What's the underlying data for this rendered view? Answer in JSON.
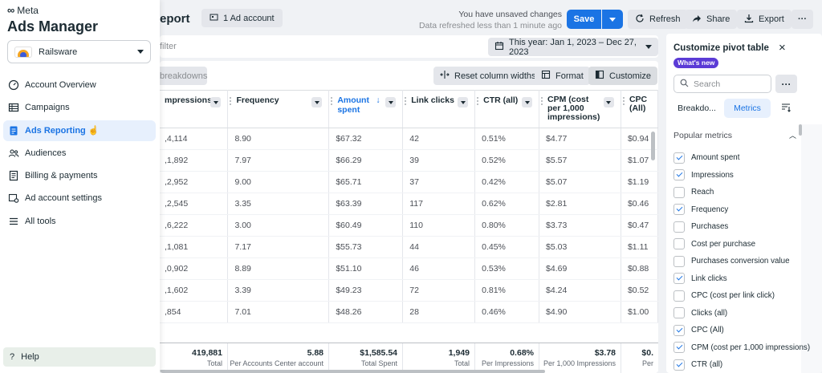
{
  "nav": {
    "brand": "Meta",
    "title": "Ads Manager",
    "account": "Railsware",
    "items": [
      {
        "label": "Account Overview",
        "icon": "gauge-icon",
        "active": false
      },
      {
        "label": "Campaigns",
        "icon": "table-icon",
        "active": false
      },
      {
        "label": "Ads Reporting",
        "icon": "report-icon",
        "active": true
      },
      {
        "label": "Audiences",
        "icon": "people-icon",
        "active": false
      },
      {
        "label": "Billing & payments",
        "icon": "receipt-icon",
        "active": false
      },
      {
        "label": "Ad account settings",
        "icon": "settings-icon",
        "active": false
      },
      {
        "label": "All tools",
        "icon": "menu-icon",
        "active": false
      }
    ],
    "help": "Help"
  },
  "header": {
    "title_partial": "eport",
    "ad_account": "1 Ad account",
    "unsaved": "You have unsaved changes",
    "refreshed": "Data refreshed less than 1 minute ago",
    "save": "Save",
    "refresh": "Refresh",
    "share": "Share",
    "export": "Export"
  },
  "filter": {
    "placeholder_partial": "filter",
    "date_range": "This year: Jan 1, 2023 – Dec 27, 2023"
  },
  "toolbar": {
    "breakdowns_partial": "breakdowns",
    "reset": "Reset column widths",
    "format": "Format",
    "customize": "Customize"
  },
  "table": {
    "columns": [
      {
        "label": "mpressions",
        "sorted": false
      },
      {
        "label": "Frequency",
        "sorted": false
      },
      {
        "label": "Amount spent",
        "sorted": true
      },
      {
        "label": "Link clicks",
        "sorted": false
      },
      {
        "label": "CTR (all)",
        "sorted": false
      },
      {
        "label": "CPM (cost per 1,000 impressions)",
        "sorted": false
      },
      {
        "label": "CPC (All)",
        "sorted": false
      }
    ],
    "rows": [
      [
        ",4,114",
        "8.90",
        "$67.32",
        "42",
        "0.51%",
        "$4.77",
        "$0.94"
      ],
      [
        ",1,892",
        "7.97",
        "$66.29",
        "39",
        "0.52%",
        "$5.57",
        "$1.07"
      ],
      [
        ",2,952",
        "9.00",
        "$65.71",
        "37",
        "0.42%",
        "$5.07",
        "$1.19"
      ],
      [
        ",2,545",
        "3.35",
        "$63.39",
        "117",
        "0.62%",
        "$2.81",
        "$0.46"
      ],
      [
        ",6,222",
        "3.00",
        "$60.49",
        "110",
        "0.80%",
        "$3.73",
        "$0.47"
      ],
      [
        ",1,081",
        "7.17",
        "$55.73",
        "44",
        "0.45%",
        "$5.03",
        "$1.11"
      ],
      [
        ",0,902",
        "8.89",
        "$51.10",
        "46",
        "0.53%",
        "$4.69",
        "$0.88"
      ],
      [
        ",1,602",
        "3.39",
        "$49.23",
        "72",
        "0.81%",
        "$4.24",
        "$0.52"
      ],
      [
        ",854",
        "7.01",
        "$48.26",
        "28",
        "0.46%",
        "$4.90",
        "$1.00"
      ]
    ],
    "totals": [
      {
        "value": "419,881",
        "label": "Total"
      },
      {
        "value": "5.88",
        "label": "Per Accounts Center account"
      },
      {
        "value": "$1,585.54",
        "label": "Total Spent"
      },
      {
        "value": "1,949",
        "label": "Total"
      },
      {
        "value": "0.68%",
        "label": "Per Impressions"
      },
      {
        "value": "$3.78",
        "label": "Per 1,000 Impressions"
      },
      {
        "value": "$0.",
        "label": "Per"
      }
    ]
  },
  "side": {
    "title": "Customize pivot table",
    "whats_new": "What's new",
    "search_placeholder": "Search",
    "tab_breakdowns": "Breakdo...",
    "tab_metrics": "Metrics",
    "section": "Popular metrics",
    "metrics": [
      {
        "label": "Amount spent",
        "checked": true
      },
      {
        "label": "Impressions",
        "checked": true
      },
      {
        "label": "Reach",
        "checked": false
      },
      {
        "label": "Frequency",
        "checked": true
      },
      {
        "label": "Purchases",
        "checked": false
      },
      {
        "label": "Cost per purchase",
        "checked": false
      },
      {
        "label": "Purchases conversion value",
        "checked": false
      },
      {
        "label": "Link clicks",
        "checked": true
      },
      {
        "label": "CPC (cost per link click)",
        "checked": false
      },
      {
        "label": "Clicks (all)",
        "checked": false
      },
      {
        "label": "CPC (All)",
        "checked": true
      },
      {
        "label": "CPM (cost per 1,000 impressions)",
        "checked": true
      },
      {
        "label": "CTR (all)",
        "checked": true
      }
    ]
  }
}
